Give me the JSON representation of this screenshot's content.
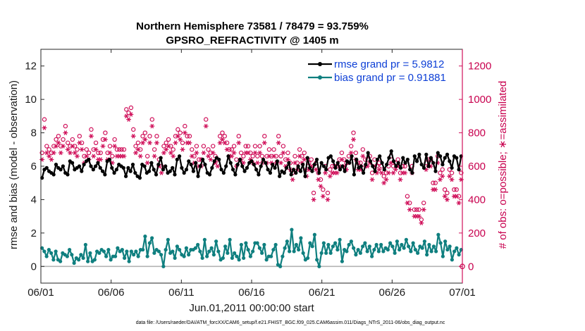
{
  "chart_data": {
    "type": "line",
    "title_line1": "Northern Hemisphere 73581 / 78479 = 93.759%",
    "title_line2": "GPSRO_REFRACTIVITY @ 1405 m",
    "xlabel": "Jun.01,2011 00:00:00 start",
    "ylabel_left": "rmse and bias (model - observation)",
    "ylabel_right": "# of obs: o=possible; ∗=assimilated",
    "footnote": "data file: /Users/raeder/DAI/ATM_forcXX/CAM6_setup/f.e21.FHIST_BGC.f09_025.CAM6assim.011/Diags_NTrS_2011-06/obs_diag_output.nc",
    "xlim": [
      0,
      30
    ],
    "ylim_left": [
      -1,
      13
    ],
    "ylim_right": [
      -100,
      1300
    ],
    "x_ticks": [
      0,
      5,
      10,
      15,
      20,
      25,
      30
    ],
    "x_tick_labels": [
      "06/01",
      "06/06",
      "06/11",
      "06/16",
      "06/21",
      "06/26",
      "07/01"
    ],
    "y_ticks_left": [
      0,
      2,
      4,
      6,
      8,
      10,
      12
    ],
    "y_ticks_right": [
      0,
      200,
      400,
      600,
      800,
      1000,
      1200
    ],
    "colors": {
      "rmse": "#000000",
      "bias": "#0f7f7f",
      "obs": "#d0105a",
      "zero_line": "#b3b3b3",
      "axis": "#262626",
      "legend_text": "#0d3fd6"
    },
    "series": [
      {
        "name": "rmse",
        "legend": "rmse grand pr = 5.9812",
        "axis": "left",
        "marker": "dot",
        "values": [
          5.3,
          5.8,
          5.9,
          5.7,
          5.6,
          5.5,
          6.1,
          5.9,
          5.8,
          6.0,
          5.6,
          5.5,
          6.3,
          6.2,
          5.8,
          5.9,
          6.0,
          5.7,
          6.1,
          6.3,
          6.4,
          6.0,
          5.8,
          6.0,
          6.2,
          5.9,
          5.7,
          5.5,
          6.3,
          6.4,
          5.9,
          5.6,
          5.8,
          6.1,
          6.0,
          5.9,
          5.4,
          5.9,
          5.7,
          6.1,
          5.6,
          5.4,
          5.3,
          6.1,
          6.0,
          5.6,
          5.7,
          6.2,
          5.8,
          5.5,
          6.1,
          6.5,
          5.8,
          6.0,
          5.6,
          5.7,
          5.9,
          5.5,
          6.4,
          6.6,
          5.9,
          5.6,
          5.8,
          6.3,
          6.1,
          5.7,
          6.2,
          5.4,
          6.0,
          6.4,
          6.1,
          5.6,
          5.5,
          5.9,
          6.3,
          6.5,
          6.4,
          5.8,
          5.6,
          6.0,
          6.6,
          6.2,
          5.8,
          5.5,
          6.1,
          6.4,
          6.0,
          5.7,
          5.9,
          6.2,
          6.3,
          6.1,
          5.8,
          5.5,
          6.0,
          6.4,
          6.2,
          5.8,
          5.6,
          6.1,
          5.9,
          6.3,
          5.4,
          5.7,
          5.6,
          5.9,
          6.2,
          5.5,
          5.8,
          5.6,
          6.0,
          5.7,
          6.1,
          5.4,
          6.5,
          5.9,
          5.7,
          6.1,
          6.4,
          5.6,
          6.2,
          6.0,
          5.8,
          6.5,
          6.6,
          6.3,
          5.9,
          6.2,
          5.8,
          6.0,
          5.7,
          6.3,
          6.2,
          6.6,
          5.5,
          6.4,
          5.9,
          6.0,
          5.6,
          6.1,
          6.8,
          6.3,
          6.0,
          5.7,
          6.4,
          6.6,
          6.2,
          5.8,
          6.1,
          6.5,
          6.9,
          6.3,
          6.0,
          6.2,
          5.9,
          6.5,
          6.2,
          6.4,
          5.8,
          5.6,
          6.6,
          6.3,
          6.7,
          6.1,
          5.9,
          6.7,
          6.0,
          6.5,
          6.2,
          5.7,
          6.8,
          6.6,
          6.1,
          6.5,
          6.7,
          6.3,
          5.9,
          6.6,
          6.5,
          5.8,
          6.6
        ]
      },
      {
        "name": "bias",
        "legend": "bias grand pr = 0.91881",
        "axis": "left",
        "marker": "dot",
        "values": [
          1.1,
          0.9,
          0.6,
          1.0,
          0.8,
          0.4,
          0.9,
          0.4,
          0.3,
          0.8,
          0.7,
          0.6,
          1.0,
          0.7,
          0.2,
          0.5,
          0.4,
          0.7,
          0.5,
          1.3,
          0.3,
          0.8,
          0.3,
          0.4,
          0.9,
          0.8,
          1.0,
          0.9,
          0.6,
          1.0,
          0.4,
          0.6,
          0.6,
          1.1,
          0.9,
          1.0,
          0.5,
          0.9,
          0.3,
          0.9,
          0.7,
          0.9,
          0.6,
          1.0,
          1.0,
          1.8,
          0.6,
          1.4,
          1.7,
          0.8,
          1.0,
          0.9,
          0.7,
          0.0,
          1.0,
          1.6,
          0.8,
          0.9,
          0.5,
          1.2,
          1.0,
          0.7,
          0.6,
          1.1,
          0.7,
          1.0,
          1.0,
          1.1,
          1.3,
          0.9,
          0.5,
          1.6,
          0.6,
          0.9,
          1.1,
          0.7,
          1.5,
          0.9,
          0.4,
          0.5,
          1.2,
          0.8,
          1.6,
          0.5,
          0.8,
          0.6,
          0.4,
          1.3,
          0.5,
          1.4,
          1.0,
          0.6,
          0.9,
          1.4,
          1.4,
          1.1,
          0.8,
          1.3,
          0.4,
          0.6,
          0.6,
          1.0,
          1.3,
          0.1,
          0.0,
          0.6,
          1.1,
          1.5,
          0.9,
          2.2,
          0.9,
          1.3,
          1.0,
          1.7,
          0.8,
          0.4,
          0.5,
          1.4,
          1.2,
          1.9,
          0.4,
          0.0,
          0.8,
          1.4,
          0.8,
          1.3,
          0.8,
          1.2,
          1.4,
          1.0,
          1.6,
          0.3,
          1.0,
          0.9,
          1.3,
          1.5,
          1.1,
          0.7,
          1.0,
          0.8,
          1.2,
          1.4,
          0.9,
          1.2,
          0.6,
          1.0,
          1.3,
          0.9,
          1.3,
          0.9,
          1.1,
          1.0,
          1.4,
          1.2,
          0.8,
          1.5,
          1.0,
          1.3,
          1.1,
          1.6,
          1.2,
          0.9,
          1.4,
          1.0,
          0.8,
          1.2,
          1.1,
          1.5,
          0.7,
          1.3,
          0.9,
          1.2,
          0.9,
          1.9,
          1.4,
          0.6,
          1.5,
          1.0,
          1.2,
          0.4,
          0.9,
          1.1,
          0.7,
          1.0
        ]
      },
      {
        "name": "obs_possible",
        "axis": "right",
        "marker": "circle",
        "values": [
          680,
          880,
          720,
          700,
          680,
          720,
          760,
          780,
          720,
          760,
          840,
          740,
          720,
          760,
          720,
          700,
          780,
          740,
          660,
          700,
          680,
          820,
          700,
          740,
          680,
          680,
          760,
          800,
          680,
          720,
          660,
          760,
          700,
          700,
          700,
          700,
          940,
          920,
          950,
          820,
          720,
          740,
          700,
          780,
          800,
          660,
          780,
          880,
          700,
          780,
          640,
          600,
          720,
          740,
          760,
          720,
          700,
          780,
          820,
          800,
          740,
          840,
          780,
          780,
          700,
          660,
          720,
          640,
          640,
          720,
          880,
          700,
          680,
          720,
          660,
          640,
          780,
          800,
          780,
          740,
          700,
          700,
          720,
          640,
          780,
          680,
          660,
          720,
          720,
          680,
          660,
          720,
          660,
          720,
          660,
          780,
          660,
          700,
          660,
          700,
          660,
          780,
          660,
          720,
          640,
          680,
          620,
          560,
          660,
          620,
          700,
          660,
          680,
          580,
          620,
          640,
          440,
          620,
          560,
          520,
          460,
          600,
          440,
          580,
          600,
          600,
          600,
          640,
          680,
          640,
          620,
          660,
          720,
          800,
          680,
          620,
          620,
          700,
          640,
          640,
          660,
          560,
          640,
          600,
          620,
          600,
          540,
          560,
          600,
          660,
          600,
          620,
          640,
          560,
          600,
          600,
          420,
          380,
          600,
          340,
          340,
          340,
          280,
          380,
          620,
          640,
          640,
          500,
          500,
          660,
          560,
          580,
          460,
          440,
          580,
          560,
          460,
          460,
          420,
          560
        ]
      },
      {
        "name": "obs_assimilated",
        "axis": "right",
        "marker": "star",
        "values": [
          640,
          830,
          680,
          660,
          640,
          680,
          720,
          740,
          680,
          720,
          800,
          700,
          680,
          720,
          680,
          660,
          740,
          700,
          620,
          660,
          640,
          780,
          660,
          700,
          640,
          640,
          720,
          760,
          640,
          680,
          620,
          720,
          660,
          660,
          660,
          660,
          900,
          880,
          910,
          780,
          680,
          700,
          660,
          740,
          760,
          620,
          740,
          840,
          660,
          740,
          600,
          560,
          680,
          700,
          720,
          680,
          660,
          740,
          780,
          760,
          700,
          800,
          740,
          740,
          660,
          620,
          680,
          600,
          600,
          680,
          840,
          660,
          640,
          680,
          620,
          600,
          740,
          760,
          740,
          700,
          660,
          660,
          680,
          600,
          740,
          640,
          620,
          680,
          680,
          640,
          620,
          680,
          620,
          680,
          620,
          740,
          620,
          660,
          620,
          660,
          620,
          740,
          620,
          680,
          600,
          640,
          580,
          520,
          620,
          580,
          660,
          620,
          640,
          540,
          580,
          600,
          400,
          580,
          520,
          480,
          420,
          560,
          400,
          540,
          560,
          560,
          560,
          600,
          640,
          600,
          580,
          620,
          680,
          760,
          640,
          580,
          580,
          660,
          600,
          600,
          620,
          520,
          600,
          560,
          580,
          560,
          500,
          520,
          560,
          620,
          560,
          580,
          600,
          520,
          560,
          560,
          380,
          340,
          560,
          300,
          300,
          300,
          260,
          340,
          580,
          600,
          600,
          460,
          460,
          620,
          520,
          540,
          420,
          400,
          540,
          520,
          420,
          420,
          380,
          520
        ]
      }
    ]
  }
}
